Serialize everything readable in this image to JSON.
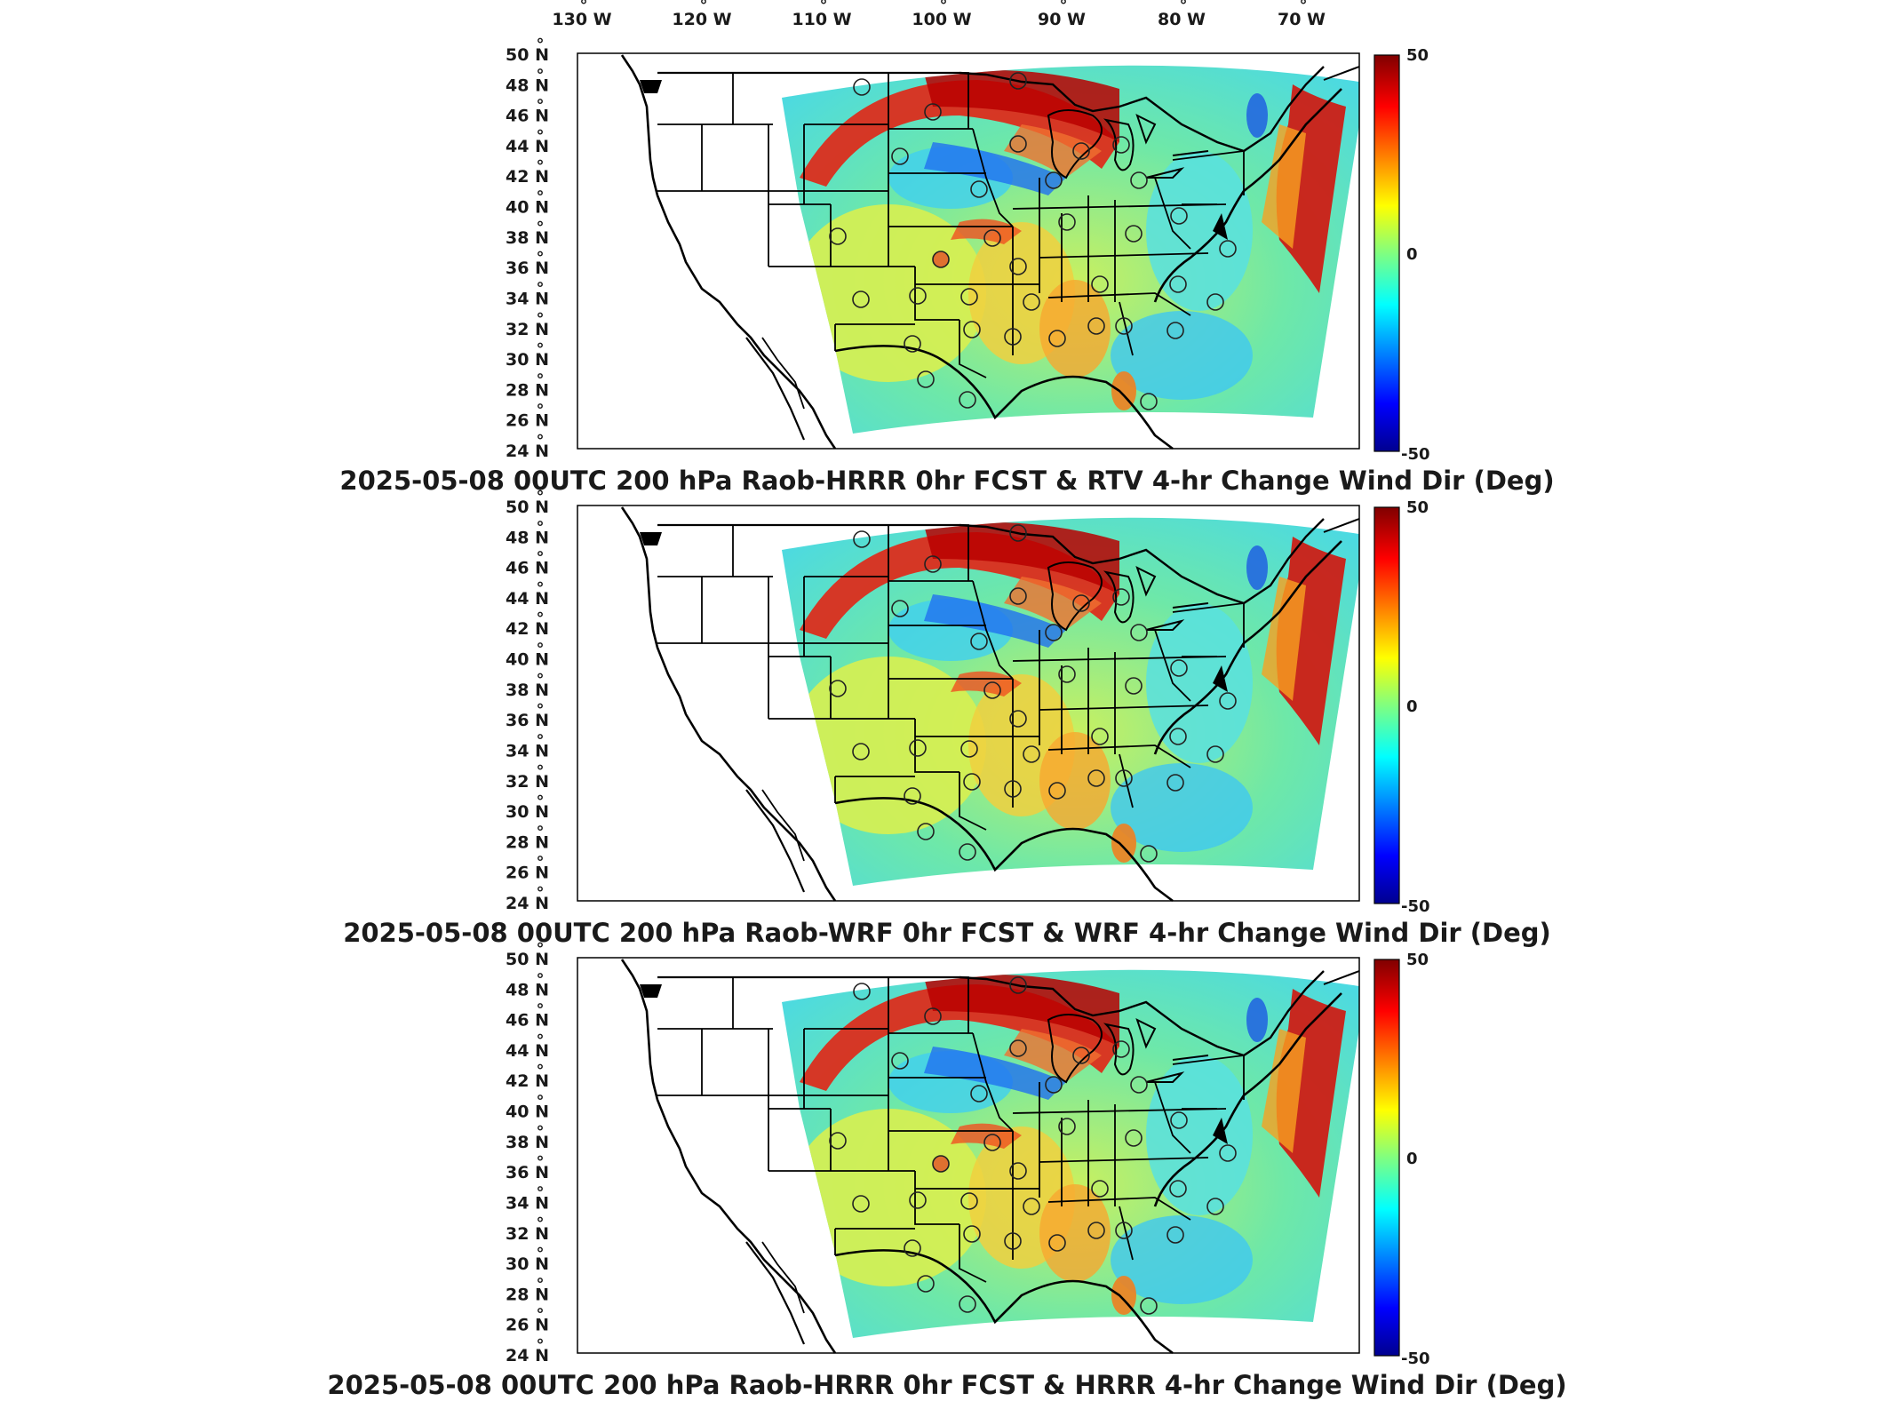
{
  "top_axis": {
    "lon_labels": [
      "130",
      "120",
      "110",
      "100",
      "90",
      "80",
      "70"
    ],
    "lon_suffix": "W",
    "degree_mark": "°"
  },
  "lat_labels": [
    "50",
    "48",
    "46",
    "44",
    "42",
    "40",
    "38",
    "36",
    "34",
    "32",
    "30",
    "28",
    "26",
    "24"
  ],
  "lat_suffix": "N",
  "colorbar": {
    "max_label": "50",
    "mid_label": "0",
    "min_label": "-50",
    "range": [
      -50,
      50
    ],
    "colormap": "jet",
    "colors": [
      "#00008f",
      "#0000ff",
      "#00ffff",
      "#ffff00",
      "#ff0000",
      "#800000"
    ]
  },
  "panels": [
    {
      "title": "2025-05-08 00UTC 200 hPa Raob-HRRR 0hr FCST & RTV 4-hr Change Wind Dir (Deg)",
      "filled_raob_stations": [
        "central-plains"
      ]
    },
    {
      "title": "2025-05-08 00UTC 200 hPa Raob-WRF 0hr FCST & WRF 4-hr Change Wind Dir (Deg)",
      "filled_raob_stations": []
    },
    {
      "title": "2025-05-08 00UTC 200 hPa Raob-HRRR 0hr FCST & HRRR 4-hr Change Wind Dir (Deg)",
      "filled_raob_stations": [
        "central-plains"
      ]
    }
  ]
}
